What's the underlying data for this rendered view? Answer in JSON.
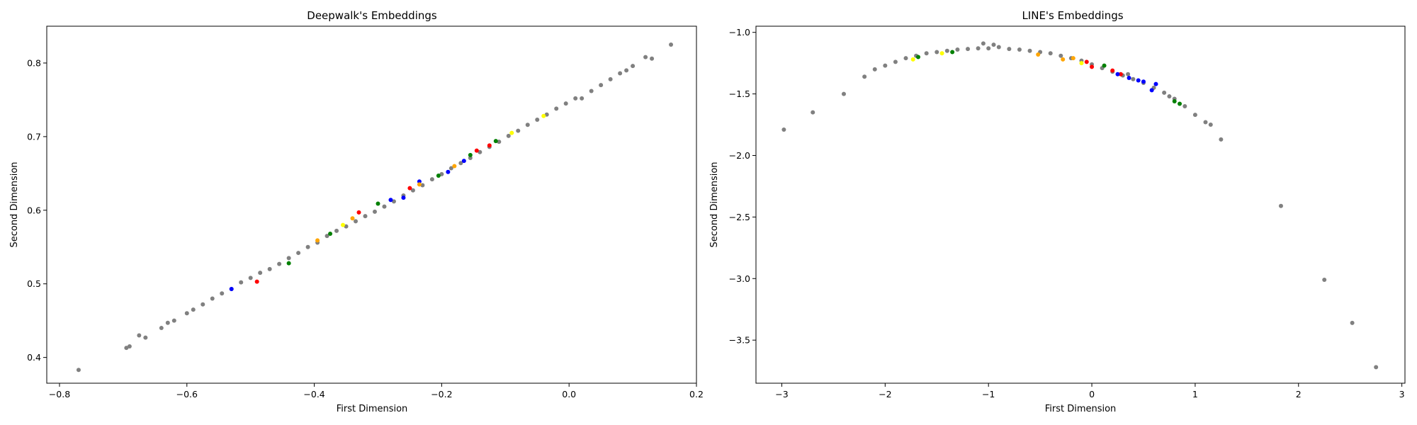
{
  "chart_data": [
    {
      "type": "scatter",
      "title": "Deepwalk's Embeddings",
      "xlabel": "First Dimension",
      "ylabel": "Second Dimension",
      "xlim": [
        -0.82,
        0.2
      ],
      "ylim": [
        0.365,
        0.85
      ],
      "xticks": [
        -0.8,
        -0.6,
        -0.4,
        -0.2,
        0.0,
        0.2
      ],
      "xtick_labels": [
        "−0.8",
        "−0.6",
        "−0.4",
        "−0.2",
        "0.0",
        "0.2"
      ],
      "yticks": [
        0.4,
        0.5,
        0.6,
        0.7,
        0.8
      ],
      "ytick_labels": [
        "0.4",
        "0.5",
        "0.6",
        "0.7",
        "0.8"
      ],
      "grid": false,
      "series": [
        {
          "color": "#808080",
          "points": [
            [
              -0.77,
              0.383
            ],
            [
              -0.695,
              0.413
            ],
            [
              -0.69,
              0.415
            ],
            [
              -0.675,
              0.43
            ],
            [
              -0.665,
              0.427
            ],
            [
              -0.64,
              0.44
            ],
            [
              -0.63,
              0.447
            ],
            [
              -0.62,
              0.45
            ],
            [
              -0.6,
              0.46
            ],
            [
              -0.59,
              0.465
            ],
            [
              -0.575,
              0.472
            ],
            [
              -0.56,
              0.48
            ],
            [
              -0.545,
              0.487
            ],
            [
              -0.53,
              0.493
            ],
            [
              -0.515,
              0.502
            ],
            [
              -0.5,
              0.508
            ],
            [
              -0.485,
              0.515
            ],
            [
              -0.47,
              0.52
            ],
            [
              -0.455,
              0.527
            ],
            [
              -0.44,
              0.535
            ],
            [
              -0.425,
              0.542
            ],
            [
              -0.41,
              0.55
            ],
            [
              -0.395,
              0.556
            ],
            [
              -0.38,
              0.565
            ],
            [
              -0.365,
              0.572
            ],
            [
              -0.35,
              0.578
            ],
            [
              -0.335,
              0.585
            ],
            [
              -0.32,
              0.592
            ],
            [
              -0.305,
              0.598
            ],
            [
              -0.29,
              0.605
            ],
            [
              -0.275,
              0.612
            ],
            [
              -0.26,
              0.62
            ],
            [
              -0.245,
              0.627
            ],
            [
              -0.23,
              0.634
            ],
            [
              -0.215,
              0.642
            ],
            [
              -0.2,
              0.649
            ],
            [
              -0.185,
              0.657
            ],
            [
              -0.17,
              0.664
            ],
            [
              -0.155,
              0.671
            ],
            [
              -0.14,
              0.679
            ],
            [
              -0.125,
              0.686
            ],
            [
              -0.11,
              0.693
            ],
            [
              -0.095,
              0.701
            ],
            [
              -0.08,
              0.708
            ],
            [
              -0.065,
              0.716
            ],
            [
              -0.05,
              0.723
            ],
            [
              -0.035,
              0.73
            ],
            [
              -0.02,
              0.738
            ],
            [
              -0.005,
              0.745
            ],
            [
              0.01,
              0.752
            ],
            [
              0.02,
              0.752
            ],
            [
              0.035,
              0.762
            ],
            [
              0.05,
              0.77
            ],
            [
              0.065,
              0.778
            ],
            [
              0.08,
              0.786
            ],
            [
              0.09,
              0.79
            ],
            [
              0.1,
              0.796
            ],
            [
              0.12,
              0.808
            ],
            [
              0.13,
              0.806
            ],
            [
              0.16,
              0.825
            ]
          ]
        },
        {
          "color": "#ff0000",
          "points": [
            [
              -0.49,
              0.503
            ],
            [
              -0.33,
              0.597
            ],
            [
              -0.25,
              0.63
            ],
            [
              -0.145,
              0.681
            ],
            [
              -0.125,
              0.688
            ]
          ]
        },
        {
          "color": "#0000ff",
          "points": [
            [
              -0.53,
              0.493
            ],
            [
              -0.28,
              0.614
            ],
            [
              -0.26,
              0.617
            ],
            [
              -0.235,
              0.639
            ],
            [
              -0.19,
              0.652
            ],
            [
              -0.165,
              0.667
            ]
          ]
        },
        {
          "color": "#008000",
          "points": [
            [
              -0.44,
              0.528
            ],
            [
              -0.375,
              0.568
            ],
            [
              -0.3,
              0.609
            ],
            [
              -0.205,
              0.647
            ],
            [
              -0.155,
              0.675
            ],
            [
              -0.115,
              0.694
            ]
          ]
        },
        {
          "color": "#ffa500",
          "points": [
            [
              -0.395,
              0.559
            ],
            [
              -0.34,
              0.589
            ],
            [
              -0.235,
              0.635
            ],
            [
              -0.18,
              0.66
            ]
          ]
        },
        {
          "color": "#ffff00",
          "points": [
            [
              -0.355,
              0.58
            ],
            [
              -0.09,
              0.705
            ],
            [
              -0.04,
              0.728
            ]
          ]
        }
      ]
    },
    {
      "type": "scatter",
      "title": "LINE's Embeddings",
      "xlabel": "First Dimension",
      "ylabel": "Second Dimension",
      "xlim": [
        -3.25,
        3.03
      ],
      "ylim": [
        -3.85,
        -0.95
      ],
      "xticks": [
        -3,
        -2,
        -1,
        0,
        1,
        2,
        3
      ],
      "xtick_labels": [
        "−3",
        "−2",
        "−1",
        "0",
        "1",
        "2",
        "3"
      ],
      "yticks": [
        -1.0,
        -1.5,
        -2.0,
        -2.5,
        -3.0,
        -3.5
      ],
      "ytick_labels": [
        "−1.0",
        "−1.5",
        "−2.0",
        "−2.5",
        "−3.0",
        "−3.5"
      ],
      "grid": false,
      "series": [
        {
          "color": "#808080",
          "points": [
            [
              -2.98,
              -1.79
            ],
            [
              -2.7,
              -1.65
            ],
            [
              -2.4,
              -1.5
            ],
            [
              -2.2,
              -1.36
            ],
            [
              -2.1,
              -1.3
            ],
            [
              -2.0,
              -1.27
            ],
            [
              -1.9,
              -1.24
            ],
            [
              -1.8,
              -1.21
            ],
            [
              -1.7,
              -1.19
            ],
            [
              -1.6,
              -1.17
            ],
            [
              -1.5,
              -1.16
            ],
            [
              -1.4,
              -1.15
            ],
            [
              -1.3,
              -1.14
            ],
            [
              -1.2,
              -1.135
            ],
            [
              -1.1,
              -1.13
            ],
            [
              -1.0,
              -1.13
            ],
            [
              -0.9,
              -1.12
            ],
            [
              -0.8,
              -1.135
            ],
            [
              -0.7,
              -1.14
            ],
            [
              -0.6,
              -1.15
            ],
            [
              -0.5,
              -1.16
            ],
            [
              -0.4,
              -1.17
            ],
            [
              -0.3,
              -1.19
            ],
            [
              -0.2,
              -1.21
            ],
            [
              -0.1,
              -1.23
            ],
            [
              0.0,
              -1.26
            ],
            [
              0.1,
              -1.29
            ],
            [
              0.2,
              -1.32
            ],
            [
              0.3,
              -1.35
            ],
            [
              0.4,
              -1.38
            ],
            [
              0.5,
              -1.41
            ],
            [
              0.6,
              -1.45
            ],
            [
              0.7,
              -1.49
            ],
            [
              0.8,
              -1.54
            ],
            [
              0.9,
              -1.6
            ],
            [
              1.0,
              -1.67
            ],
            [
              1.1,
              -1.73
            ],
            [
              -1.05,
              -1.09
            ],
            [
              -0.95,
              -1.1
            ],
            [
              0.35,
              -1.34
            ],
            [
              0.75,
              -1.52
            ],
            [
              1.15,
              -1.75
            ],
            [
              1.25,
              -1.87
            ],
            [
              1.83,
              -2.41
            ],
            [
              2.25,
              -3.01
            ],
            [
              2.52,
              -3.36
            ],
            [
              2.75,
              -3.72
            ]
          ]
        },
        {
          "color": "#ff0000",
          "points": [
            [
              -0.05,
              -1.24
            ],
            [
              0.0,
              -1.28
            ],
            [
              0.2,
              -1.31
            ],
            [
              0.28,
              -1.34
            ]
          ]
        },
        {
          "color": "#0000ff",
          "points": [
            [
              0.25,
              -1.34
            ],
            [
              0.36,
              -1.37
            ],
            [
              0.45,
              -1.39
            ],
            [
              0.5,
              -1.4
            ],
            [
              0.58,
              -1.47
            ],
            [
              0.62,
              -1.42
            ]
          ]
        },
        {
          "color": "#008000",
          "points": [
            [
              -1.68,
              -1.2
            ],
            [
              -1.35,
              -1.16
            ],
            [
              0.12,
              -1.27
            ],
            [
              0.8,
              -1.56
            ],
            [
              0.85,
              -1.58
            ]
          ]
        },
        {
          "color": "#ffa500",
          "points": [
            [
              -0.52,
              -1.18
            ],
            [
              -0.28,
              -1.22
            ],
            [
              -0.18,
              -1.21
            ]
          ]
        },
        {
          "color": "#ffff00",
          "points": [
            [
              -1.73,
              -1.22
            ],
            [
              -1.45,
              -1.17
            ],
            [
              -0.1,
              -1.25
            ]
          ]
        }
      ]
    }
  ]
}
